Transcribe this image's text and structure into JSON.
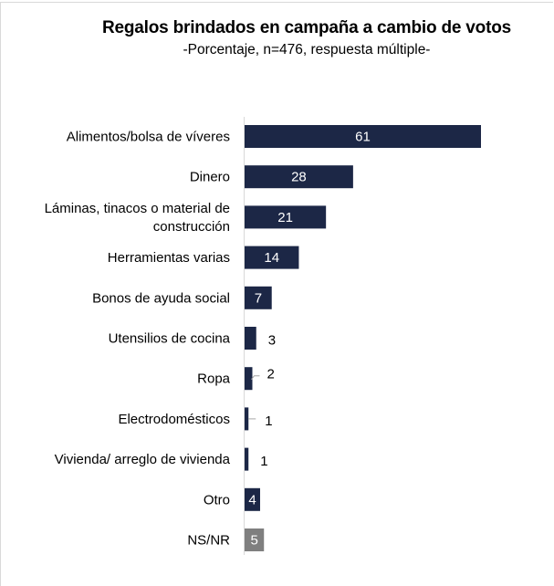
{
  "chart_data": {
    "type": "bar",
    "orientation": "horizontal",
    "title": "Regalos brindados en campaña a cambio de votos",
    "subtitle": "-Porcentaje, n=476, respuesta múltiple-",
    "xlabel": "",
    "ylabel": "",
    "xlim": [
      0,
      70
    ],
    "grid": false,
    "legend": "none",
    "categories": [
      [
        "Alimentos/bolsa de víveres"
      ],
      [
        "Dinero"
      ],
      [
        "Láminas, tinacos o material de",
        "construcción"
      ],
      [
        "Herramientas varias"
      ],
      [
        "Bonos de ayuda social"
      ],
      [
        "Utensilios de cocina"
      ],
      [
        "Ropa"
      ],
      [
        "Electrodomésticos"
      ],
      [
        "Vivienda/ arreglo de vivienda"
      ],
      [
        "Otro"
      ],
      [
        "NS/NR"
      ]
    ],
    "values": [
      61,
      28,
      21,
      14,
      7,
      3,
      2,
      1,
      1,
      4,
      5
    ],
    "data_labels": [
      "61",
      "28",
      "21",
      "14",
      "7",
      "3",
      "2",
      "1",
      "1",
      "4",
      "5"
    ],
    "colors": [
      "#1c2746",
      "#1c2746",
      "#1c2746",
      "#1c2746",
      "#1c2746",
      "#1c2746",
      "#1c2746",
      "#1c2746",
      "#1c2746",
      "#1c2746",
      "#7f7f7f"
    ],
    "axis_color": "#d9d9d9",
    "leader_color": "#a6a6a6"
  }
}
